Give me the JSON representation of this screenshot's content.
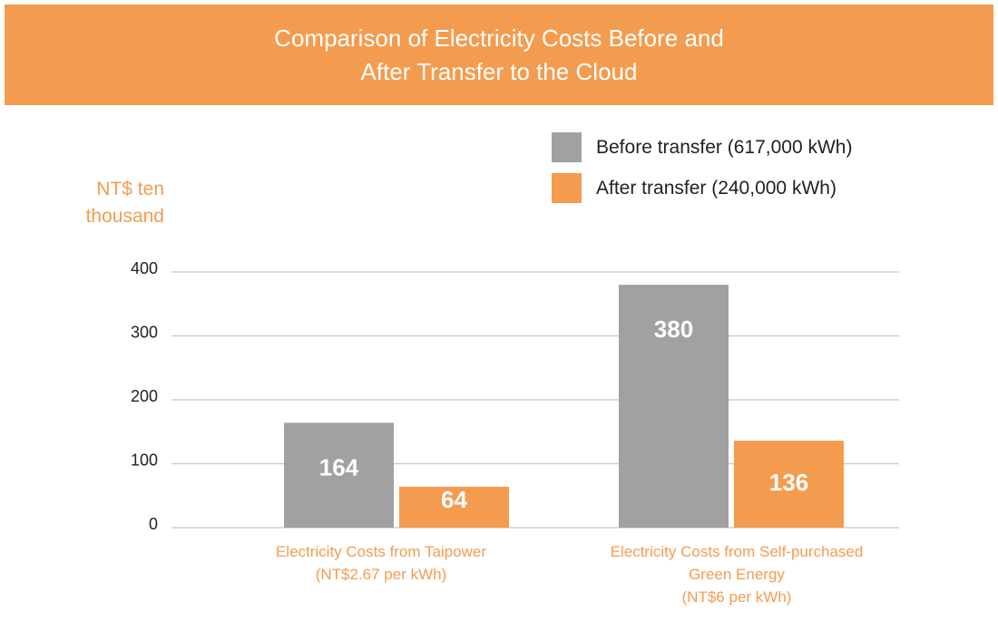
{
  "title": {
    "line1": "Comparison of Electricity Costs Before and",
    "line2": "After Transfer to the Cloud"
  },
  "colors": {
    "banner": "#f39c50",
    "before": "#a0a1a0",
    "after": "#f39c50",
    "grid": "#c8c8c8"
  },
  "chart_data": {
    "type": "bar",
    "ylabel": "NT$ ten thousand",
    "ylim": [
      0,
      400
    ],
    "yticks": [
      0,
      100,
      200,
      300,
      400
    ],
    "categories": [
      "Electricity Costs from Taipower (NT$2.67 per kWh)",
      "Electricity Costs from Self-purchased Green Energy (NT$6 per kWh)"
    ],
    "series": [
      {
        "name": "Before transfer (617,000 kWh)",
        "values": [
          164,
          380
        ]
      },
      {
        "name": "After transfer (240,000 kWh)",
        "values": [
          64,
          136
        ]
      }
    ],
    "legend_position": "top-right",
    "grid": true
  },
  "labels": {
    "y_unit_line1": "NT$ ten",
    "y_unit_line2": "thousand",
    "cat1_line1": "Electricity Costs from Taipower",
    "cat1_line2": "(NT$2.67 per kWh)",
    "cat2_line1": "Electricity Costs from Self-purchased",
    "cat2_line2": "Green Energy",
    "cat2_line3": "(NT$6 per kWh)"
  }
}
